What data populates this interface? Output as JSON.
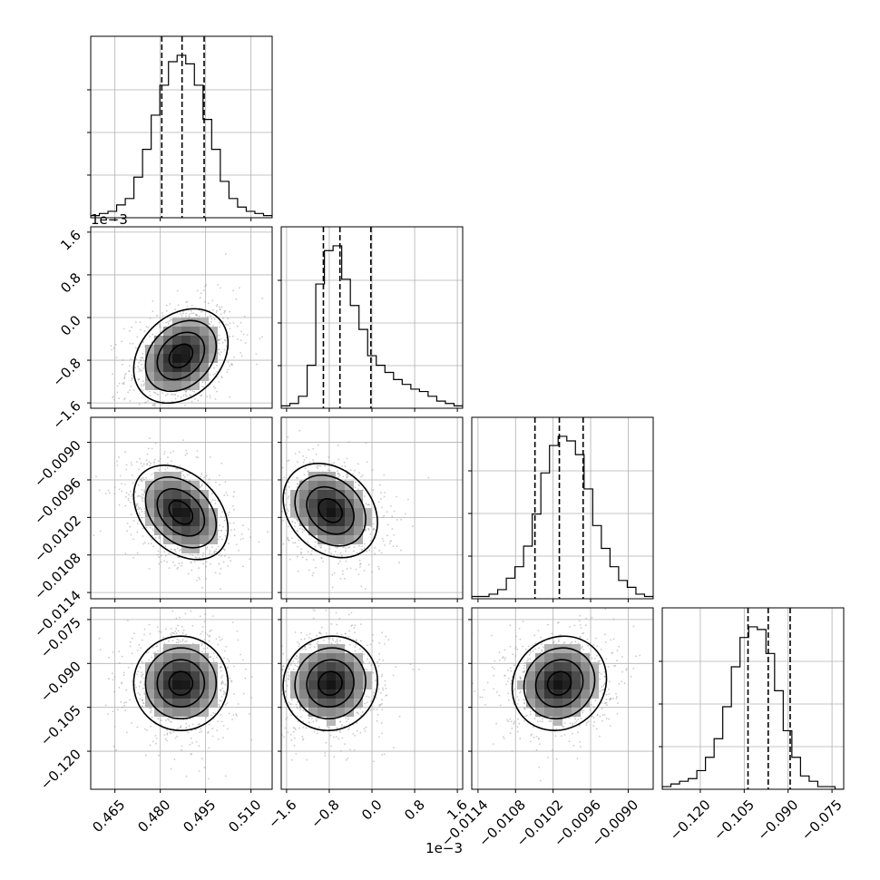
{
  "chart_data": {
    "type": "corner",
    "parameters": [
      {
        "index": 0,
        "range": [
          0.457,
          0.517
        ],
        "quantiles": [
          0.4805,
          0.4872,
          0.4945
        ],
        "ticks": [
          0.465,
          0.48,
          0.495,
          0.51
        ],
        "tick_labels": [
          "0.465",
          "0.480",
          "0.495",
          "0.510"
        ],
        "offset_label": "",
        "hist": [
          1,
          2,
          3,
          6,
          9,
          19,
          32,
          48,
          62,
          73,
          76,
          72,
          62,
          46,
          32,
          17,
          9,
          5,
          3,
          2,
          1
        ]
      },
      {
        "index": 1,
        "range": [
          -0.0017,
          0.0017
        ],
        "quantiles": [
          -0.00091,
          -0.0006,
          -2e-05
        ],
        "ticks": [
          -0.0016,
          -0.0008,
          0.0,
          0.0008,
          0.0016
        ],
        "tick_labels": [
          "−1.6",
          "−0.8",
          "0.0",
          "0.8",
          "1.6"
        ],
        "offset_label": "1e−3",
        "hist": [
          1,
          2,
          5,
          18,
          52,
          66,
          68,
          54,
          43,
          33,
          22,
          18,
          15,
          12,
          10,
          8,
          7,
          5,
          3,
          2,
          1
        ]
      },
      {
        "index": 2,
        "range": [
          -0.0115,
          -0.0086
        ],
        "quantiles": [
          -0.01049,
          -0.0101,
          -0.00972
        ],
        "ticks": [
          -0.0114,
          -0.0108,
          -0.0102,
          -0.0096,
          -0.009
        ],
        "tick_labels": [
          "−0.0114",
          "−0.0108",
          "−0.0102",
          "−0.0096",
          "−0.0090"
        ],
        "offset_label": "",
        "hist": [
          1,
          1,
          2,
          4,
          9,
          14,
          23,
          37,
          55,
          67,
          71,
          69,
          63,
          48,
          32,
          22,
          14,
          8,
          5,
          2,
          1
        ]
      },
      {
        "index": 3,
        "range": [
          -0.133,
          -0.071
        ],
        "quantiles": [
          -0.1037,
          -0.0968,
          -0.0893
        ],
        "ticks": [
          -0.12,
          -0.105,
          -0.09,
          -0.075
        ],
        "tick_labels": [
          "−0.120",
          "−0.105",
          "−0.090",
          "−0.075"
        ],
        "offset_label": "",
        "hist": [
          1,
          2,
          3,
          4,
          7,
          12,
          19,
          31,
          46,
          57,
          61,
          60,
          51,
          37,
          22,
          12,
          5,
          3,
          1,
          1,
          0
        ]
      }
    ],
    "pairs": [
      {
        "x": 0,
        "y": 1,
        "center": [
          0.4868,
          -0.00072
        ],
        "corr": 0.28
      },
      {
        "x": 0,
        "y": 2,
        "center": [
          0.4868,
          -0.01012
        ],
        "corr": -0.35
      },
      {
        "x": 1,
        "y": 2,
        "center": [
          -0.00078,
          -0.01009
        ],
        "corr": -0.25
      },
      {
        "x": 0,
        "y": 3,
        "center": [
          0.4868,
          -0.0968
        ],
        "corr": 0.0
      },
      {
        "x": 1,
        "y": 3,
        "center": [
          -0.00078,
          -0.0968
        ],
        "corr": 0.05
      },
      {
        "x": 2,
        "y": 3,
        "center": [
          -0.0101,
          -0.0968
        ],
        "corr": 0.1
      }
    ],
    "grid": true,
    "colors": {
      "line": "#000000",
      "points": "#9e9e9e",
      "grid": "#b0b0b0"
    }
  }
}
